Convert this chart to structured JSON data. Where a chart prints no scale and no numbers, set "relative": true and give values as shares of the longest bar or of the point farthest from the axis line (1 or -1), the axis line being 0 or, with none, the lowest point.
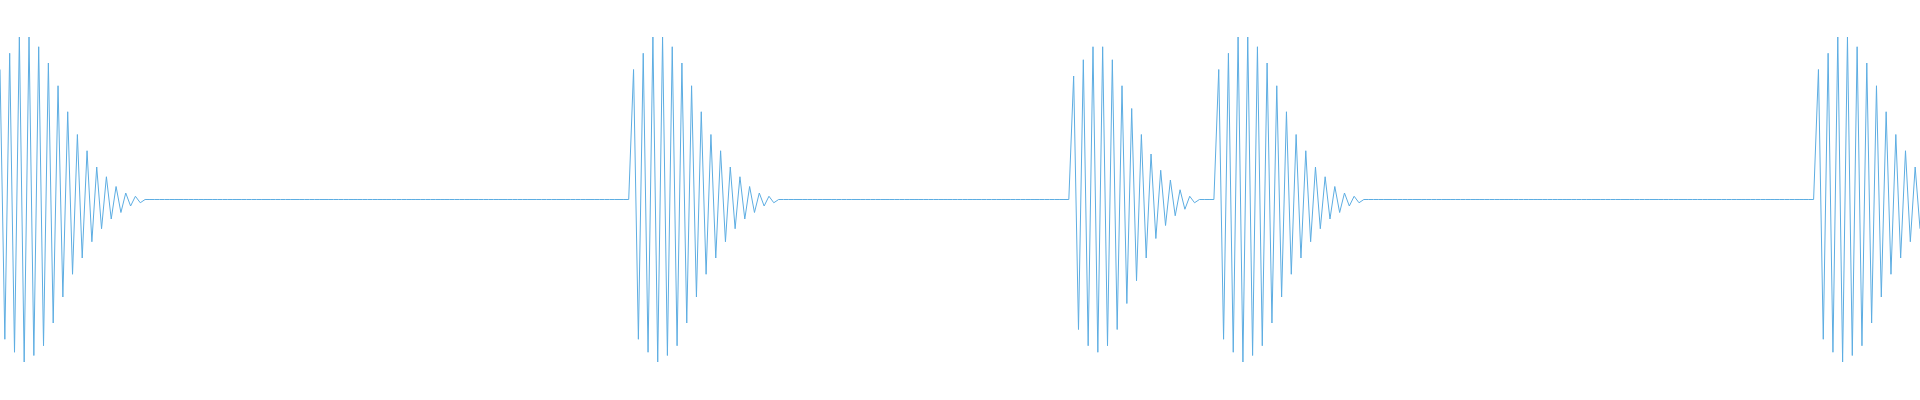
{
  "chart_data": {
    "type": "line",
    "relative": true,
    "color": "#5dade2",
    "categories": [
      null,
      null,
      null,
      null,
      null,
      null,
      null,
      null,
      null,
      null,
      null,
      null,
      null,
      null,
      null,
      null,
      null,
      null,
      null,
      null,
      null,
      null,
      null,
      null,
      null,
      null,
      null,
      null,
      null,
      null,
      null,
      null,
      null,
      null,
      null,
      null,
      null,
      null,
      null,
      null,
      null,
      null,
      null,
      null,
      null,
      null,
      null,
      null,
      null,
      null,
      null,
      null,
      null,
      null,
      null,
      null,
      null,
      null,
      null,
      null,
      null,
      null,
      null,
      null,
      null,
      null,
      null,
      null,
      null,
      null,
      null,
      null,
      null,
      null,
      null,
      null,
      null,
      null,
      null,
      null,
      null,
      null,
      null,
      null,
      null,
      null,
      null,
      null,
      null,
      null,
      null,
      null,
      null,
      null,
      null,
      null,
      null,
      null,
      null,
      null,
      null,
      null,
      null,
      null,
      null,
      null,
      null,
      null,
      null,
      null,
      null,
      null,
      null,
      null,
      null,
      null,
      null,
      null,
      null,
      null,
      null,
      null,
      null,
      null,
      null,
      null,
      null,
      null,
      null,
      null,
      null,
      null,
      null,
      null,
      null,
      null,
      null,
      null,
      null,
      null,
      null,
      null,
      null,
      null,
      null,
      null,
      null,
      null,
      null,
      null,
      null,
      null,
      null,
      null,
      null,
      null,
      null,
      null,
      null,
      null,
      null,
      null,
      null,
      null,
      null,
      null,
      null,
      null,
      null,
      null,
      null,
      null,
      null,
      null,
      null,
      null,
      null,
      null,
      null,
      null,
      null,
      null,
      null,
      null,
      null,
      null,
      null,
      null,
      null,
      null,
      null,
      null,
      null,
      null,
      null,
      null,
      null,
      null,
      null,
      null,
      null,
      null,
      null,
      null,
      null,
      null,
      null,
      null,
      null,
      null,
      null,
      null,
      null,
      null,
      null,
      null,
      null,
      null,
      null,
      null,
      null,
      null,
      null,
      null,
      null,
      null,
      null,
      null,
      null,
      null,
      null,
      null,
      null,
      null,
      null,
      null,
      null,
      null,
      null,
      null,
      null,
      null,
      null,
      null,
      null,
      null,
      null,
      null,
      null,
      null,
      null,
      null,
      null,
      null,
      null,
      null,
      null,
      null,
      null,
      null,
      null,
      null,
      null,
      null,
      null,
      null,
      null,
      null,
      null,
      null,
      null,
      null,
      null,
      null,
      null,
      null,
      null,
      null,
      null,
      null,
      null,
      null,
      null,
      null,
      null,
      null,
      null,
      null,
      null,
      null,
      null,
      null,
      null,
      null,
      null,
      null,
      null,
      null,
      null,
      null,
      null,
      null,
      null,
      null,
      null,
      null,
      null,
      null,
      null,
      null,
      null,
      null,
      null,
      null,
      null,
      null,
      null,
      null,
      null,
      null,
      null,
      null,
      null,
      null,
      null,
      null,
      null,
      null,
      null,
      null,
      null,
      null,
      null,
      null,
      null,
      null,
      null,
      null,
      null,
      null,
      null,
      null,
      null,
      null,
      null,
      null,
      null,
      null,
      null,
      null,
      null,
      null,
      null,
      null,
      null,
      null,
      null,
      null,
      null,
      null,
      null,
      null,
      null,
      null,
      null,
      null,
      null,
      null,
      null,
      null,
      null,
      null,
      null,
      null,
      null,
      null,
      null,
      null,
      null,
      null,
      null,
      null,
      null,
      null,
      null,
      null,
      null,
      null,
      null,
      null,
      null,
      null,
      null,
      null,
      null,
      null,
      null,
      null
    ],
    "values": [
      0.9,
      0.07,
      0.95,
      0.03,
      1,
      0,
      1,
      0.02,
      0.97,
      0.05,
      0.92,
      0.12,
      0.85,
      0.2,
      0.77,
      0.27,
      0.7,
      0.32,
      0.65,
      0.37,
      0.6,
      0.41,
      0.57,
      0.44,
      0.54,
      0.46,
      0.52,
      0.48,
      0.51,
      0.49,
      0.5,
      0.5,
      0.5,
      0.5,
      0.5,
      0.5,
      0.5,
      0.5,
      0.5,
      0.5,
      0.5,
      0.5,
      0.5,
      0.5,
      0.5,
      0.5,
      0.5,
      0.5,
      0.5,
      0.5,
      0.5,
      0.5,
      0.5,
      0.5,
      0.5,
      0.5,
      0.5,
      0.5,
      0.5,
      0.5,
      0.5,
      0.5,
      0.5,
      0.5,
      0.5,
      0.5,
      0.5,
      0.5,
      0.5,
      0.5,
      0.5,
      0.5,
      0.5,
      0.5,
      0.5,
      0.5,
      0.5,
      0.5,
      0.5,
      0.5,
      0.5,
      0.5,
      0.5,
      0.5,
      0.5,
      0.5,
      0.5,
      0.5,
      0.5,
      0.5,
      0.5,
      0.5,
      0.5,
      0.5,
      0.5,
      0.5,
      0.5,
      0.5,
      0.5,
      0.5,
      0.5,
      0.5,
      0.5,
      0.5,
      0.5,
      0.5,
      0.5,
      0.5,
      0.5,
      0.5,
      0.5,
      0.5,
      0.5,
      0.5,
      0.5,
      0.5,
      0.5,
      0.5,
      0.5,
      0.5,
      0.5,
      0.5,
      0.5,
      0.5,
      0.5,
      0.5,
      0.5,
      0.5,
      0.5,
      0.5,
      0.5,
      0.9,
      0.07,
      0.95,
      0.03,
      1,
      0,
      1,
      0.02,
      0.97,
      0.05,
      0.92,
      0.12,
      0.85,
      0.2,
      0.77,
      0.27,
      0.7,
      0.32,
      0.65,
      0.37,
      0.6,
      0.41,
      0.57,
      0.44,
      0.54,
      0.46,
      0.52,
      0.48,
      0.51,
      0.49,
      0.5,
      0.5,
      0.5,
      0.5,
      0.5,
      0.5,
      0.5,
      0.5,
      0.5,
      0.5,
      0.5,
      0.5,
      0.5,
      0.5,
      0.5,
      0.5,
      0.5,
      0.5,
      0.5,
      0.5,
      0.5,
      0.5,
      0.5,
      0.5,
      0.5,
      0.5,
      0.5,
      0.5,
      0.5,
      0.5,
      0.5,
      0.5,
      0.5,
      0.5,
      0.5,
      0.5,
      0.5,
      0.5,
      0.5,
      0.5,
      0.5,
      0.5,
      0.5,
      0.5,
      0.5,
      0.5,
      0.5,
      0.5,
      0.5,
      0.5,
      0.5,
      0.5,
      0.5,
      0.5,
      0.5,
      0.5,
      0.5,
      0.5,
      0.5,
      0.5,
      0.5,
      0.88,
      0.1,
      0.93,
      0.05,
      0.97,
      0.03,
      0.97,
      0.05,
      0.93,
      0.1,
      0.85,
      0.18,
      0.78,
      0.25,
      0.7,
      0.32,
      0.64,
      0.38,
      0.59,
      0.42,
      0.56,
      0.45,
      0.53,
      0.47,
      0.51,
      0.49,
      0.5,
      0.5,
      0.5,
      0.5,
      0.9,
      0.07,
      0.95,
      0.03,
      1,
      0,
      1,
      0.02,
      0.97,
      0.05,
      0.92,
      0.12,
      0.85,
      0.2,
      0.77,
      0.27,
      0.7,
      0.32,
      0.65,
      0.37,
      0.6,
      0.41,
      0.57,
      0.44,
      0.54,
      0.46,
      0.52,
      0.48,
      0.51,
      0.49,
      0.5,
      0.5,
      0.5,
      0.5,
      0.5,
      0.5,
      0.5,
      0.5,
      0.5,
      0.5,
      0.5,
      0.5,
      0.5,
      0.5,
      0.5,
      0.5,
      0.5,
      0.5,
      0.5,
      0.5,
      0.5,
      0.5,
      0.5,
      0.5,
      0.5,
      0.5,
      0.5,
      0.5,
      0.5,
      0.5,
      0.5,
      0.5,
      0.5,
      0.5,
      0.5,
      0.5,
      0.5,
      0.5,
      0.5,
      0.5,
      0.5,
      0.5,
      0.5,
      0.5,
      0.5,
      0.5,
      0.5,
      0.5,
      0.5,
      0.5,
      0.5,
      0.5,
      0.5,
      0.5,
      0.5,
      0.5,
      0.5,
      0.5,
      0.5,
      0.5,
      0.5,
      0.5,
      0.5,
      0.5,
      0.5,
      0.5,
      0.5,
      0.5,
      0.5,
      0.5,
      0.5,
      0.5,
      0.5,
      0.5,
      0.5,
      0.5,
      0.5,
      0.5,
      0.5,
      0.5,
      0.5,
      0.5,
      0.5,
      0.5,
      0.5,
      0.5,
      0.5,
      0.5,
      0.5,
      0.5,
      0.5,
      0.5,
      0.5,
      0.5,
      0.9,
      0.07,
      0.95,
      0.03,
      1,
      0,
      1,
      0.02,
      0.97,
      0.05,
      0.92,
      0.12,
      0.85,
      0.2,
      0.77,
      0.27,
      0.7,
      0.32,
      0.65,
      0.37,
      0.6,
      0.41
    ]
  }
}
